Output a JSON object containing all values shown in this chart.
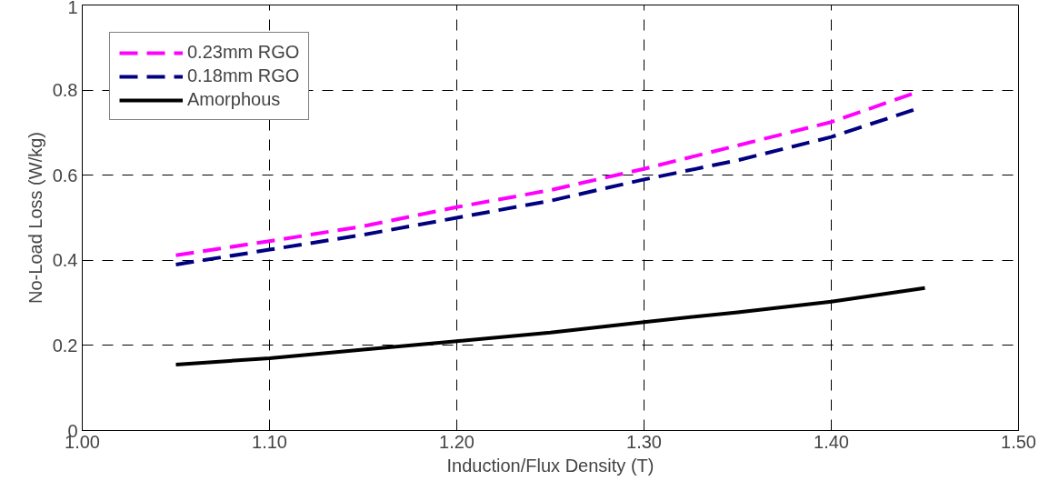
{
  "chart_data": {
    "type": "line",
    "xlabel": "Induction/Flux Density (T)",
    "ylabel": "No-Load Loss (W/kg)",
    "xlim": [
      1.0,
      1.5
    ],
    "ylim": [
      0,
      1
    ],
    "xticks": [
      {
        "value": 1.0,
        "label": "1.00"
      },
      {
        "value": 1.1,
        "label": "1.10"
      },
      {
        "value": 1.2,
        "label": "1.20"
      },
      {
        "value": 1.3,
        "label": "1.30"
      },
      {
        "value": 1.4,
        "label": "1.40"
      },
      {
        "value": 1.5,
        "label": "1.50"
      }
    ],
    "yticks": [
      0,
      0.2,
      0.4,
      0.6,
      0.8,
      1
    ],
    "grid": true,
    "legend": "top left",
    "marker": "none",
    "series": [
      {
        "name": "0.23mm RGO",
        "color": "#ff00ff",
        "line_style": "dashed",
        "x": [
          1.05,
          1.1,
          1.15,
          1.2,
          1.25,
          1.3,
          1.35,
          1.4,
          1.445
        ],
        "values": [
          0.412,
          0.445,
          0.48,
          0.525,
          0.565,
          0.615,
          0.67,
          0.725,
          0.794
        ]
      },
      {
        "name": "0.18mm RGO",
        "color": "#000080",
        "line_style": "dashed",
        "x": [
          1.05,
          1.1,
          1.15,
          1.2,
          1.25,
          1.3,
          1.35,
          1.4,
          1.445
        ],
        "values": [
          0.39,
          0.425,
          0.46,
          0.5,
          0.54,
          0.59,
          0.635,
          0.69,
          0.755
        ]
      },
      {
        "name": "Amorphous",
        "color": "#000000",
        "line_style": "solid",
        "x": [
          1.05,
          1.1,
          1.15,
          1.2,
          1.25,
          1.3,
          1.35,
          1.4,
          1.45
        ],
        "values": [
          0.155,
          0.17,
          0.19,
          0.21,
          0.23,
          0.255,
          0.278,
          0.303,
          0.335
        ]
      }
    ]
  }
}
